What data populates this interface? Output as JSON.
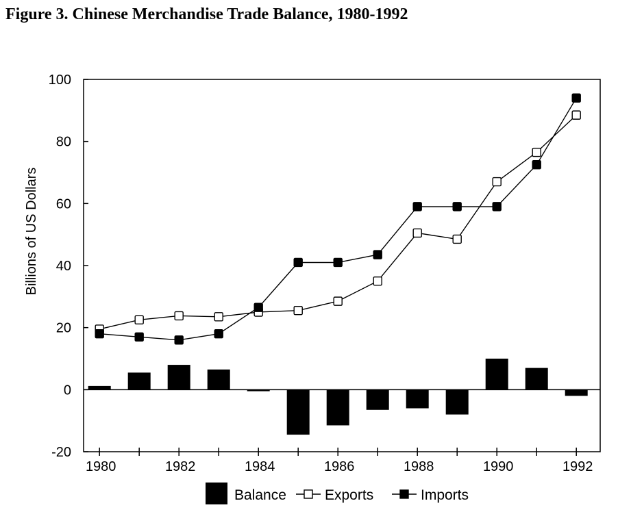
{
  "title": "Figure 3. Chinese Merchandise Trade Balance, 1980-1992",
  "chart_data": {
    "type": "line",
    "title": "Figure 3. Chinese Merchandise Trade Balance, 1980-1992",
    "xlabel": "",
    "ylabel": "Billions of US Dollars",
    "ylim": [
      -20,
      100
    ],
    "yticks": [
      -20,
      0,
      20,
      40,
      60,
      80,
      100
    ],
    "x": [
      1980,
      1981,
      1982,
      1983,
      1984,
      1985,
      1986,
      1987,
      1988,
      1989,
      1990,
      1991,
      1992
    ],
    "xtick_labels": [
      "1980",
      "1982",
      "1984",
      "1986",
      "1988",
      "1990",
      "1992"
    ],
    "series": [
      {
        "name": "Balance",
        "kind": "bar",
        "color": "#000000",
        "values": [
          1.2,
          5.5,
          8.0,
          6.5,
          -0.5,
          -14.5,
          -11.5,
          -6.5,
          -6.0,
          -8.0,
          10.0,
          7.0,
          -2.0
        ]
      },
      {
        "name": "Exports",
        "kind": "line",
        "marker": "open-square",
        "color": "#000000",
        "values": [
          19.5,
          22.5,
          23.8,
          23.5,
          25.0,
          25.5,
          28.5,
          35.0,
          50.5,
          48.5,
          67.0,
          76.5,
          88.5
        ]
      },
      {
        "name": "Imports",
        "kind": "line",
        "marker": "filled-square",
        "color": "#000000",
        "values": [
          18.0,
          17.0,
          16.0,
          18.0,
          26.5,
          41.0,
          41.0,
          43.5,
          59.0,
          59.0,
          59.0,
          72.5,
          94.0
        ]
      }
    ],
    "legend": {
      "placement": "bottom",
      "entries": [
        "Balance",
        "Exports",
        "Imports"
      ]
    },
    "grid": false
  }
}
